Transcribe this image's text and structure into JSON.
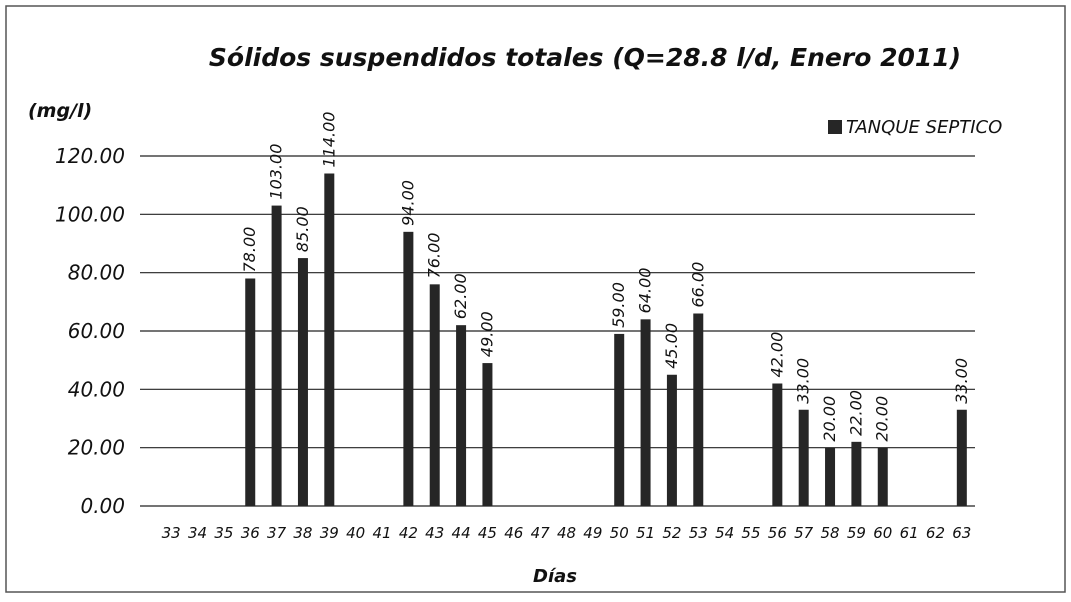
{
  "chart_data": {
    "type": "bar",
    "title": "Sólidos suspendidos  totales (Q=28.8 l/d, Enero 2011)",
    "y_axis_label": "(mg/l)",
    "x_axis_label": "Días",
    "categories": [
      "33",
      "34",
      "35",
      "36",
      "37",
      "38",
      "39",
      "40",
      "41",
      "42",
      "43",
      "44",
      "45",
      "46",
      "47",
      "48",
      "49",
      "50",
      "51",
      "52",
      "53",
      "54",
      "55",
      "56",
      "57",
      "58",
      "59",
      "60",
      "61",
      "62",
      "63"
    ],
    "series": [
      {
        "name": "TANQUE SEPTICO",
        "color": "#262626",
        "values": [
          null,
          null,
          null,
          78,
          103,
          85,
          114,
          null,
          null,
          94,
          76,
          62,
          49,
          null,
          null,
          null,
          null,
          59,
          64,
          45,
          66,
          null,
          null,
          42,
          33,
          20,
          22,
          20,
          null,
          null,
          33
        ],
        "value_labels": [
          null,
          null,
          null,
          "78.00",
          "103.00",
          "85.00",
          "114.00",
          null,
          null,
          "94.00",
          "76.00",
          "62.00",
          "49.00",
          null,
          null,
          null,
          null,
          "59.00",
          "64.00",
          "45.00",
          "66.00",
          null,
          null,
          "42.00",
          "33.00",
          "20.00",
          "22.00",
          "20.00",
          null,
          null,
          "33.00"
        ]
      }
    ],
    "ylim": [
      0,
      120
    ],
    "yticks": [
      {
        "value": 0,
        "label": "0.00"
      },
      {
        "value": 20,
        "label": "20.00"
      },
      {
        "value": 40,
        "label": "40.00"
      },
      {
        "value": 60,
        "label": "60.00"
      },
      {
        "value": 80,
        "label": "80.00"
      },
      {
        "value": 100,
        "label": "100.00"
      },
      {
        "value": 120,
        "label": "120.00"
      }
    ],
    "grid": true,
    "legend": "top-right"
  }
}
